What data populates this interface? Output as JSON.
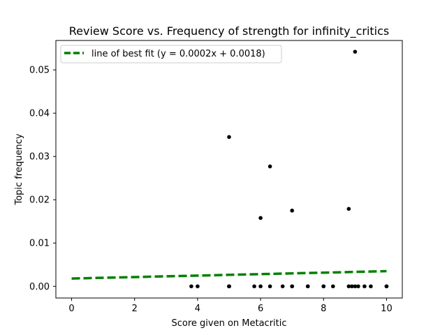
{
  "chart_data": {
    "type": "scatter",
    "title": "Review Score vs. Frequency of strength for infinity_critics",
    "xlabel": "Score given on Metacritic",
    "ylabel": "Topic frequency",
    "xlim": [
      -0.5,
      10.5
    ],
    "ylim": [
      -0.0027,
      0.0568
    ],
    "x_ticks": [
      0,
      2,
      4,
      6,
      8,
      10
    ],
    "x_tick_labels": [
      "0",
      "2",
      "4",
      "6",
      "8",
      "10"
    ],
    "y_ticks": [
      0.0,
      0.01,
      0.02,
      0.03,
      0.04,
      0.05
    ],
    "y_tick_labels": [
      "0.00",
      "0.01",
      "0.02",
      "0.03",
      "0.04",
      "0.05"
    ],
    "grid": false,
    "legend_position": "top-left",
    "legend_entries": [
      "line of best fit (y = 0.0002x + 0.0018)"
    ],
    "points_color": "#000000",
    "series": [
      {
        "kind": "points",
        "x": [
          3.8,
          4.0,
          5.0,
          5.0,
          5.0,
          5.0,
          5.0,
          5.8,
          6.0,
          6.0,
          6.3,
          6.3,
          6.7,
          7.0,
          7.0,
          7.0,
          7.5,
          7.5,
          8.0,
          8.0,
          8.3,
          8.8,
          8.8,
          8.9,
          9.0,
          9.0,
          9.1,
          9.3,
          9.5,
          10.0,
          10.0
        ],
        "y": [
          0.0,
          0.0,
          0.0,
          0.0,
          0.0,
          0.0,
          0.0345,
          0.0,
          0.0,
          0.0158,
          0.0,
          0.0277,
          0.0,
          0.0,
          0.0,
          0.0175,
          0.0,
          0.0,
          0.0,
          0.0,
          0.0,
          0.0,
          0.0179,
          0.0,
          0.0,
          0.0542,
          0.0,
          0.0,
          0.0,
          0.0,
          0.0
        ]
      },
      {
        "kind": "line",
        "name": "line of best fit (y = 0.0002x + 0.0018)",
        "slope": 0.00017,
        "intercept": 0.0018,
        "x_range": [
          0,
          10
        ],
        "color": "#008000",
        "style": "dashed"
      }
    ]
  }
}
